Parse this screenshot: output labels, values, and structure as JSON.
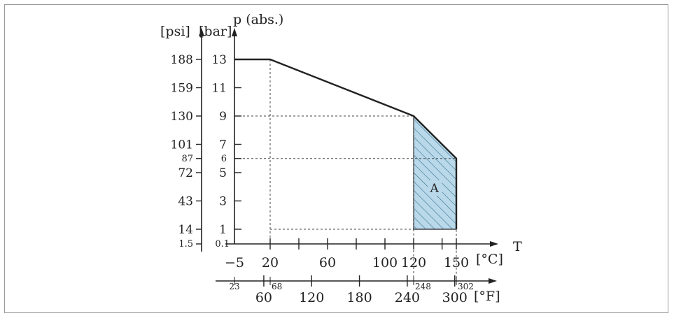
{
  "chart_data": {
    "type": "area",
    "ylabel": "p (abs.)",
    "xlabel": "T",
    "y_units": [
      "[psi]",
      "[bar]"
    ],
    "x_units": [
      "[°C]",
      "[°F]"
    ],
    "bar_ticks": [
      0.1,
      1,
      3,
      5,
      6,
      7,
      9,
      11,
      13
    ],
    "psi_ticks": [
      1.5,
      14,
      43,
      72,
      87,
      101,
      130,
      159,
      188
    ],
    "celsius_ticks": [
      -5,
      20,
      60,
      100,
      120,
      150
    ],
    "fahrenheit_major_ticks": [
      60,
      120,
      180,
      240,
      300
    ],
    "fahrenheit_minor_labels": [
      23,
      68,
      248,
      302
    ],
    "series": [
      {
        "x": [
          -5,
          20,
          120,
          150,
          150
        ],
        "y": [
          13,
          13,
          9,
          6,
          1
        ]
      }
    ],
    "region_A": {
      "label": "A",
      "x": [
        120,
        120,
        150,
        150
      ],
      "y": [
        1,
        9,
        6,
        1
      ]
    },
    "dashed_guides": [
      {
        "x": 20,
        "y": 13
      },
      {
        "x": 120,
        "y": 9
      },
      {
        "x": 150,
        "y": 6
      }
    ],
    "ylim": [
      0.1,
      13
    ],
    "xlim": [
      -5,
      150
    ]
  }
}
